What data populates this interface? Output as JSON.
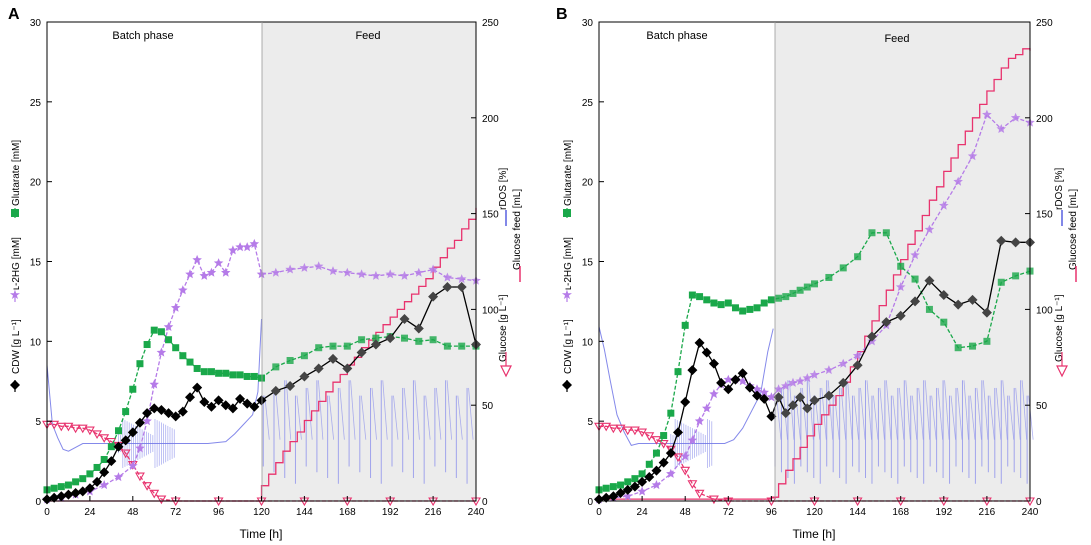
{
  "chart_data": [
    {
      "type": "line",
      "panel_label": "A",
      "xlabel": "Time [h]",
      "xlim": [
        0,
        240
      ],
      "xticks": [
        0,
        24,
        48,
        72,
        96,
        120,
        144,
        168,
        192,
        216,
        240
      ],
      "ylim_left": [
        0,
        30
      ],
      "yticks_left": [
        0,
        5,
        10,
        15,
        20,
        25,
        30
      ],
      "ylim_right": [
        0,
        250
      ],
      "yticks_right": [
        0,
        50,
        100,
        150,
        200,
        250
      ],
      "phase_batch_label": "Batch phase",
      "phase_feed_label": "Feed",
      "feed_start": 120,
      "series": [
        {
          "name": "CDW",
          "axis": "left",
          "color": "#000000",
          "marker": "diamond",
          "x": [
            0,
            4,
            8,
            12,
            16,
            20,
            24,
            28,
            32,
            36,
            40,
            44,
            48,
            52,
            56,
            60,
            64,
            68,
            72,
            76,
            80,
            84,
            88,
            92,
            96,
            100,
            104,
            108,
            112,
            116,
            120,
            128,
            136,
            144,
            152,
            160,
            168,
            176,
            184,
            192,
            200,
            208,
            216,
            224,
            232,
            240
          ],
          "y": [
            0.1,
            0.2,
            0.3,
            0.4,
            0.5,
            0.6,
            0.8,
            1.2,
            1.8,
            2.5,
            3.4,
            3.8,
            4.3,
            4.9,
            5.5,
            5.8,
            5.7,
            5.5,
            5.3,
            5.6,
            6.5,
            7.1,
            6.2,
            5.9,
            6.3,
            6.0,
            5.8,
            6.4,
            6.1,
            5.9,
            6.3,
            6.9,
            7.2,
            7.8,
            8.3,
            8.9,
            8.3,
            9.3,
            9.8,
            10.2,
            11.4,
            10.8,
            12.8,
            13.4,
            13.4,
            9.8
          ]
        },
        {
          "name": "Glutarate",
          "axis": "left",
          "color": "#1aa84a",
          "marker": "square",
          "x": [
            0,
            4,
            8,
            12,
            16,
            20,
            24,
            28,
            32,
            36,
            40,
            44,
            48,
            52,
            56,
            60,
            64,
            68,
            72,
            76,
            80,
            84,
            88,
            92,
            96,
            100,
            104,
            108,
            112,
            116,
            120,
            128,
            136,
            144,
            152,
            160,
            168,
            176,
            184,
            192,
            200,
            208,
            216,
            224,
            232,
            240
          ],
          "y": [
            0.7,
            0.8,
            0.9,
            1.0,
            1.2,
            1.4,
            1.7,
            2.1,
            2.6,
            3.4,
            4.4,
            5.6,
            7.0,
            8.6,
            9.8,
            10.7,
            10.6,
            10.1,
            9.6,
            9.1,
            8.7,
            8.3,
            8.1,
            8.1,
            8.0,
            8.0,
            7.9,
            7.9,
            7.8,
            7.8,
            7.7,
            8.4,
            8.8,
            9.1,
            9.6,
            9.7,
            9.7,
            10.1,
            10.2,
            10.3,
            10.2,
            10.0,
            10.1,
            9.7,
            9.7,
            9.7
          ]
        },
        {
          "name": "L-2HG",
          "axis": "left",
          "color": "#b57be8",
          "marker": "star",
          "x": [
            0,
            8,
            16,
            24,
            32,
            40,
            48,
            52,
            56,
            60,
            64,
            68,
            72,
            76,
            80,
            84,
            88,
            92,
            96,
            100,
            104,
            108,
            112,
            116,
            120,
            128,
            136,
            144,
            152,
            160,
            168,
            176,
            184,
            192,
            200,
            208,
            216,
            224,
            232,
            240
          ],
          "y": [
            0.1,
            0.2,
            0.4,
            0.6,
            1.0,
            1.5,
            2.2,
            3.3,
            5.0,
            7.3,
            9.3,
            10.9,
            12.1,
            13.2,
            14.2,
            15.1,
            14.1,
            14.3,
            14.9,
            14.3,
            15.7,
            15.9,
            15.9,
            16.1,
            14.2,
            14.3,
            14.5,
            14.6,
            14.7,
            14.4,
            14.3,
            14.2,
            14.1,
            14.2,
            14.1,
            14.3,
            14.5,
            14.0,
            13.9,
            13.8
          ]
        },
        {
          "name": "Glucose",
          "axis": "right",
          "color": "#e8336e",
          "marker": "triangle-down",
          "x": [
            0,
            4,
            8,
            12,
            16,
            20,
            24,
            28,
            32,
            36,
            40,
            44,
            48,
            52,
            56,
            60,
            64,
            72,
            96,
            120,
            144,
            168,
            192,
            216,
            240
          ],
          "y": [
            40,
            40,
            39,
            39,
            38,
            38,
            37,
            35,
            33,
            31,
            29,
            25,
            19,
            13,
            8,
            4,
            1,
            0,
            0,
            0,
            0,
            0,
            0,
            0,
            0
          ]
        },
        {
          "name": "Glucose feed",
          "axis": "right",
          "color": "#e8336e",
          "marker": "none",
          "x": [
            0,
            120,
            120,
            124,
            128,
            132,
            136,
            140,
            144,
            148,
            152,
            156,
            160,
            164,
            168,
            172,
            176,
            180,
            184,
            188,
            192,
            196,
            200,
            204,
            208,
            212,
            216,
            220,
            224,
            228,
            232,
            236,
            240
          ],
          "y": [
            0,
            0,
            8,
            14,
            20,
            26,
            31,
            36,
            42,
            47,
            52,
            57,
            62,
            66,
            71,
            75,
            80,
            84,
            88,
            92,
            96,
            100,
            104,
            108,
            112,
            116,
            122,
            127,
            132,
            136,
            142,
            147,
            153
          ]
        },
        {
          "name": "rDOS",
          "axis": "right",
          "color": "#6f74e6",
          "marker": "none",
          "x": [
            0,
            3,
            6,
            9,
            12,
            20,
            30,
            40,
            48,
            56,
            64,
            72,
            80,
            90,
            100,
            105,
            110,
            115,
            118,
            120
          ],
          "y": [
            71,
            40,
            33,
            27,
            26,
            30,
            30,
            30,
            30,
            30,
            30,
            30,
            30,
            30,
            31,
            35,
            40,
            45,
            57,
            95
          ]
        }
      ],
      "legend_labels": [
        "CDW [g L⁻¹]",
        "ʟ-2HG [mM]",
        "Glutarate [mM]",
        "rDOS [%]",
        "Glucose [g L⁻¹]",
        "Glucose feed [mL]"
      ]
    },
    {
      "type": "line",
      "panel_label": "B",
      "xlabel": "Time [h]",
      "xlim": [
        0,
        240
      ],
      "xticks": [
        0,
        24,
        48,
        72,
        96,
        120,
        144,
        168,
        192,
        216,
        240
      ],
      "ylim_left": [
        0,
        30
      ],
      "yticks_left": [
        0,
        5,
        10,
        15,
        20,
        25,
        30
      ],
      "ylim_right": [
        0,
        250
      ],
      "yticks_right": [
        0,
        50,
        100,
        150,
        200,
        250
      ],
      "phase_batch_label": "Batch phase",
      "phase_feed_label": "Feed",
      "feed_start": 97,
      "series": [
        {
          "name": "CDW",
          "axis": "left",
          "color": "#000000",
          "marker": "diamond",
          "x": [
            0,
            4,
            8,
            12,
            16,
            20,
            24,
            28,
            32,
            36,
            40,
            44,
            48,
            52,
            56,
            60,
            64,
            68,
            72,
            76,
            80,
            84,
            88,
            92,
            96,
            100,
            104,
            108,
            112,
            116,
            120,
            128,
            136,
            144,
            152,
            160,
            168,
            176,
            184,
            192,
            200,
            208,
            216,
            224,
            232,
            240
          ],
          "y": [
            0.1,
            0.2,
            0.3,
            0.5,
            0.7,
            0.9,
            1.2,
            1.5,
            1.9,
            2.4,
            3.0,
            4.3,
            6.2,
            8.2,
            9.9,
            9.3,
            8.6,
            7.4,
            7.0,
            7.6,
            8.0,
            7.1,
            6.6,
            6.4,
            5.3,
            6.5,
            5.5,
            6.0,
            6.5,
            5.8,
            6.3,
            6.6,
            7.4,
            8.5,
            10.3,
            11.2,
            11.6,
            12.5,
            13.8,
            12.9,
            12.3,
            12.6,
            11.8,
            16.3,
            16.2,
            16.2
          ]
        },
        {
          "name": "Glutarate",
          "axis": "left",
          "color": "#1aa84a",
          "marker": "square",
          "x": [
            0,
            4,
            8,
            12,
            16,
            20,
            24,
            28,
            32,
            36,
            40,
            44,
            48,
            52,
            56,
            60,
            64,
            68,
            72,
            76,
            80,
            84,
            88,
            92,
            96,
            100,
            104,
            108,
            112,
            116,
            120,
            128,
            136,
            144,
            152,
            160,
            168,
            176,
            184,
            192,
            200,
            208,
            216,
            224,
            232,
            240
          ],
          "y": [
            0.7,
            0.8,
            0.9,
            1.0,
            1.2,
            1.4,
            1.7,
            2.3,
            3.0,
            4.1,
            5.5,
            8.1,
            11.0,
            12.9,
            12.8,
            12.6,
            12.4,
            12.3,
            12.4,
            12.1,
            11.9,
            12.0,
            12.1,
            12.4,
            12.6,
            12.7,
            12.8,
            13.0,
            13.2,
            13.4,
            13.6,
            14.0,
            14.6,
            15.3,
            16.8,
            16.8,
            14.7,
            13.9,
            12.0,
            11.2,
            9.6,
            9.7,
            10.0,
            13.7,
            14.1,
            14.4
          ]
        },
        {
          "name": "L-2HG",
          "axis": "left",
          "color": "#b57be8",
          "marker": "star",
          "x": [
            0,
            8,
            16,
            24,
            32,
            40,
            48,
            52,
            56,
            60,
            64,
            68,
            72,
            76,
            80,
            84,
            88,
            92,
            96,
            100,
            104,
            108,
            112,
            116,
            120,
            128,
            136,
            144,
            152,
            160,
            168,
            176,
            184,
            192,
            200,
            208,
            216,
            224,
            232,
            240
          ],
          "y": [
            0.1,
            0.2,
            0.3,
            0.6,
            1.0,
            1.7,
            2.8,
            3.8,
            5.0,
            5.8,
            6.7,
            7.3,
            7.6,
            7.6,
            7.5,
            7.2,
            7.0,
            6.8,
            6.5,
            7.0,
            7.2,
            7.4,
            7.5,
            7.7,
            7.9,
            8.2,
            8.6,
            9.1,
            10.0,
            11.0,
            13.4,
            15.4,
            17.0,
            18.5,
            20.0,
            21.6,
            24.2,
            23.3,
            24.0,
            23.7
          ]
        },
        {
          "name": "Glucose",
          "axis": "right",
          "color": "#e8336e",
          "marker": "triangle-down",
          "x": [
            0,
            4,
            8,
            12,
            16,
            20,
            24,
            28,
            32,
            36,
            40,
            44,
            48,
            52,
            56,
            64,
            72,
            96,
            120,
            144,
            168,
            192,
            216,
            240
          ],
          "y": [
            39,
            39,
            38,
            38,
            37,
            37,
            36,
            34,
            32,
            30,
            27,
            23,
            16,
            9,
            4,
            1,
            0,
            0,
            0,
            0,
            0,
            0,
            0,
            0
          ]
        },
        {
          "name": "Glucose feed",
          "axis": "right",
          "color": "#e8336e",
          "marker": "none",
          "x": [
            0,
            96,
            96,
            100,
            104,
            108,
            112,
            116,
            120,
            124,
            128,
            132,
            136,
            140,
            144,
            148,
            152,
            156,
            160,
            164,
            168,
            172,
            176,
            180,
            184,
            188,
            192,
            196,
            200,
            204,
            208,
            212,
            216,
            220,
            224,
            228,
            232,
            236,
            240
          ],
          "y": [
            1,
            1,
            2,
            9,
            16,
            22,
            28,
            34,
            40,
            45,
            50,
            55,
            62,
            70,
            78,
            86,
            94,
            102,
            110,
            118,
            126,
            134,
            141,
            149,
            157,
            164,
            172,
            179,
            186,
            193,
            200,
            207,
            214,
            220,
            226,
            231,
            233,
            236,
            235
          ]
        },
        {
          "name": "rDOS",
          "axis": "right",
          "color": "#6f74e6",
          "marker": "none",
          "x": [
            0,
            3,
            6,
            10,
            14,
            18,
            22,
            26,
            30,
            40,
            50,
            60,
            70,
            75,
            80,
            90,
            94,
            97
          ],
          "y": [
            91,
            79,
            64,
            45,
            36,
            29,
            30,
            30,
            30,
            30,
            30,
            30,
            30,
            32,
            38,
            56,
            78,
            90
          ]
        }
      ],
      "legend_labels": [
        "CDW [g L⁻¹]",
        "ʟ-2HG [mM]",
        "Glutarate [mM]",
        "rDOS [%]",
        "Glucose [g L⁻¹]",
        "Glucose feed [mL]"
      ]
    }
  ]
}
